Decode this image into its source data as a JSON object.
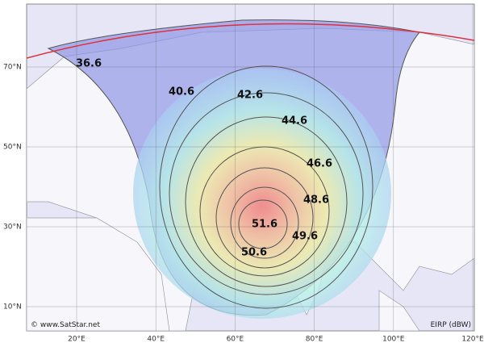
{
  "map": {
    "longitudes": [
      "20°E",
      "40°E",
      "60°E",
      "80°E",
      "100°E",
      "120°E"
    ],
    "latitudes": [
      "70°N",
      "50°N",
      "30°N",
      "10°N"
    ],
    "contours": [
      36.6,
      40.6,
      42.6,
      44.6,
      46.6,
      48.6,
      49.6,
      50.6,
      51.6
    ],
    "credit": "© www.SatStar.net",
    "legend": "EIRP (dBW)"
  }
}
